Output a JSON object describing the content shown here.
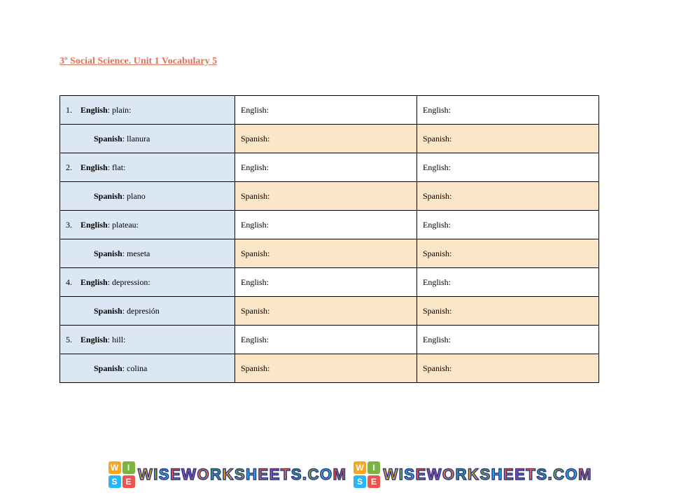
{
  "title": "3º Social Science. Unit 1 Vocabulary 5",
  "labels": {
    "english": "English",
    "spanish": "Spanish"
  },
  "table": {
    "columns": [
      "given",
      "practice1",
      "practice2"
    ],
    "colors": {
      "given_bg": "#dbe7f2",
      "english_blank_bg": "#ffffff",
      "spanish_blank_bg": "#fce6c8",
      "border": "#000000",
      "title_color": "#d9745a"
    },
    "rows": [
      {
        "num": "1.",
        "english": "plain",
        "spanish": "llanura"
      },
      {
        "num": "2.",
        "english": "flat",
        "spanish": "plano"
      },
      {
        "num": "3.",
        "english": "plateau",
        "spanish": "meseta"
      },
      {
        "num": "4.",
        "english": "depression",
        "spanish": "depresión"
      },
      {
        "num": "5.",
        "english": "hill",
        "spanish": "colina"
      }
    ]
  },
  "watermark": {
    "text": "WISEWORKSHEETS.COM",
    "logo_letters": [
      "W",
      "I",
      "S",
      "E"
    ],
    "letter_colors": [
      "#f5a623",
      "#7cb342",
      "#29b6f6",
      "#ef5350",
      "#ab47bc",
      "#ff7043",
      "#26a69a"
    ],
    "outline_color": "#2a3b7d"
  }
}
